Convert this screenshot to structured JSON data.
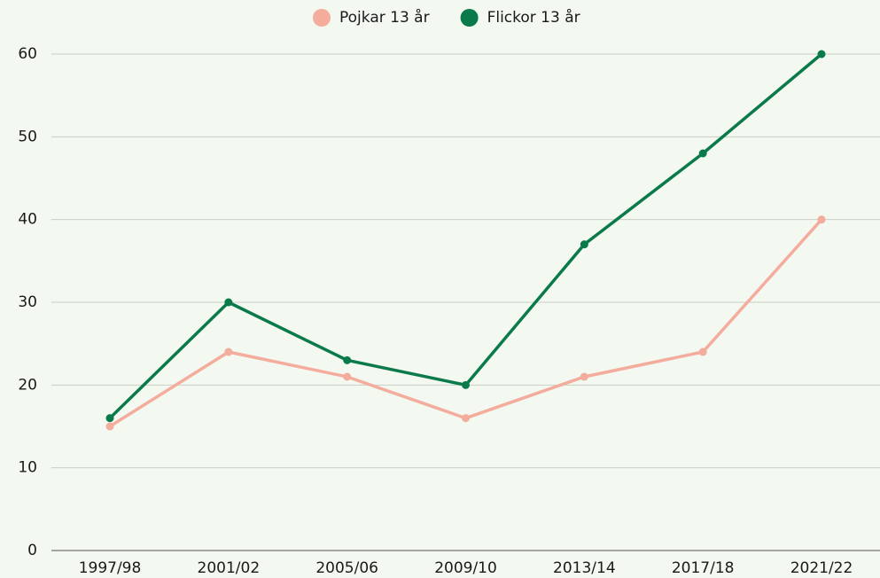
{
  "chart_data": {
    "type": "line",
    "categories": [
      "1997/98",
      "2001/02",
      "2005/06",
      "2009/10",
      "2013/14",
      "2017/18",
      "2021/22"
    ],
    "series": [
      {
        "name": "Pojkar 13 år",
        "color": "#f4ad9d",
        "values": [
          15,
          24,
          21,
          16,
          21,
          24,
          40
        ]
      },
      {
        "name": "Flickor 13 år",
        "color": "#0b7a4b",
        "values": [
          16,
          30,
          23,
          20,
          37,
          48,
          60
        ]
      }
    ],
    "ylim": [
      0,
      60
    ],
    "yticks": [
      0,
      10,
      20,
      30,
      40,
      50,
      60
    ],
    "grid": true,
    "legend": "top"
  }
}
